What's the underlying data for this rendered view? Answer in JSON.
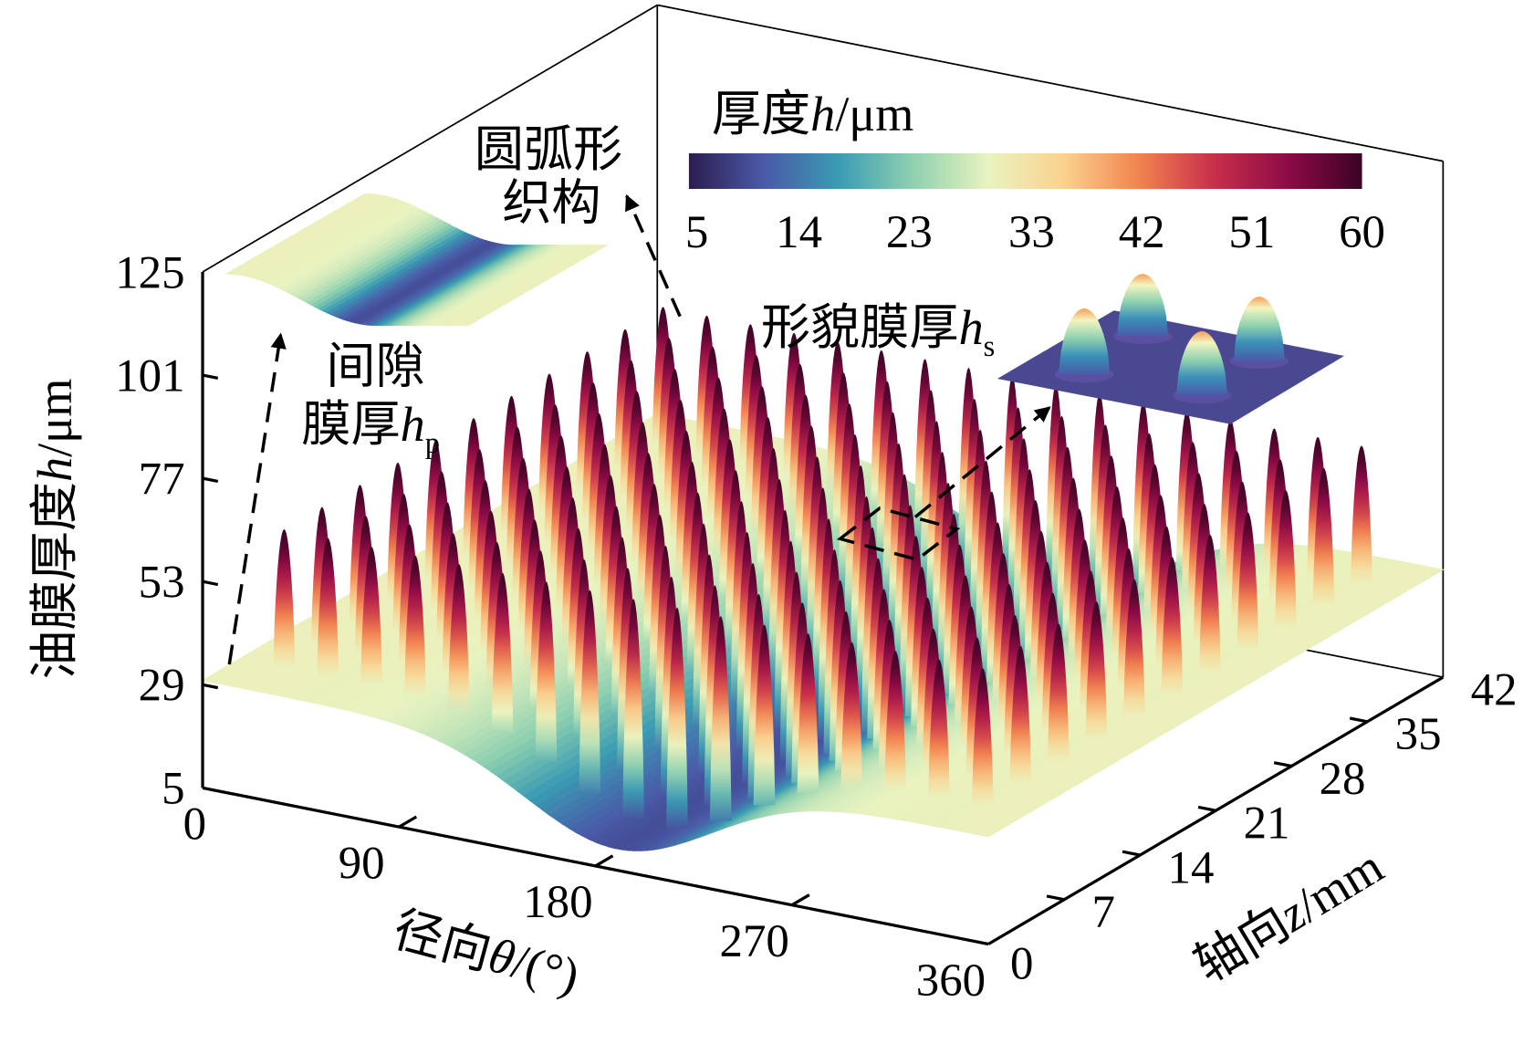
{
  "chart_data": {
    "type": "surface3d",
    "theta_axis": {
      "label": "径向",
      "symbol": "θ",
      "unit": "/(°)",
      "range": [
        0,
        360
      ],
      "ticks": [
        "0",
        "90",
        "180",
        "270",
        "360"
      ]
    },
    "z_axis": {
      "label": "轴向",
      "symbol": "z",
      "unit": "/mm",
      "range": [
        0,
        42
      ],
      "ticks": [
        "0",
        "7",
        "14",
        "21",
        "28",
        "35",
        "42"
      ]
    },
    "h_axis": {
      "label": "油膜厚度",
      "symbol": "h",
      "unit": "/μm",
      "range": [
        5,
        125
      ],
      "ticks": [
        "5",
        "29",
        "53",
        "77",
        "101",
        "125"
      ]
    },
    "colorbar": {
      "title": "厚度",
      "symbol": "h",
      "unit": "/μm",
      "range": [
        5,
        60
      ],
      "ticks": [
        "5",
        "14",
        "23",
        "33",
        "42",
        "51",
        "60"
      ],
      "colors": [
        "#2b1d4f",
        "#4a5aa8",
        "#3a9bb3",
        "#8fd1b0",
        "#e9f3c0",
        "#fbd28f",
        "#f28550",
        "#c9304a",
        "#8e0b46",
        "#3a0323"
      ]
    },
    "gap_film": {
      "edge_h": 30,
      "min_h": 10,
      "min_theta": 190,
      "width_theta": 60
    },
    "texture": {
      "theta_start": 20,
      "theta_step": 20,
      "theta_count": 17,
      "z_start": 3.5,
      "z_step": 3.5,
      "z_count": 11,
      "peak_h": 62
    },
    "annotations": {
      "texture_line1": "圆弧形",
      "texture_line2": "织构",
      "gap_line1": "间隙",
      "gap_line2": "膜厚",
      "gap_symbol": "h",
      "gap_sub": "p",
      "shape_label": "形貌膜厚",
      "shape_symbol": "h",
      "shape_sub": "s"
    }
  }
}
